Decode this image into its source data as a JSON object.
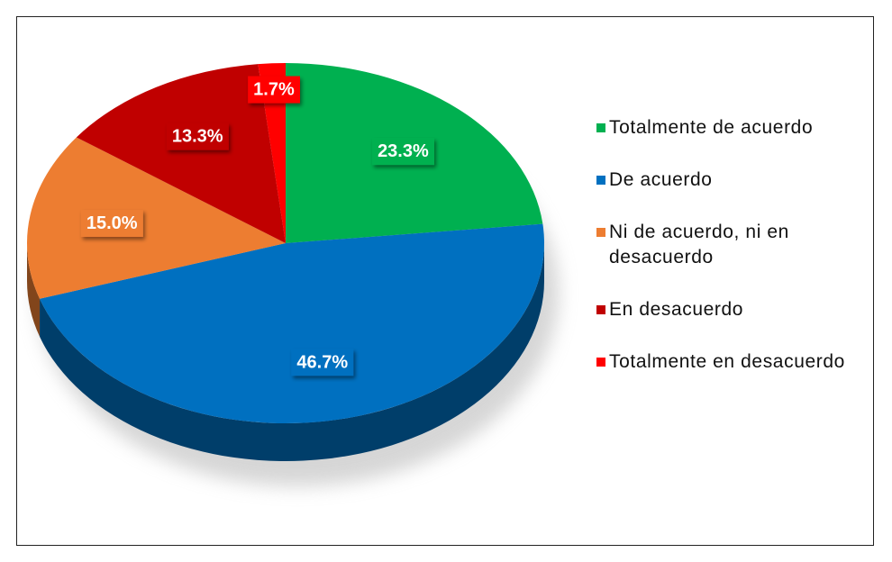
{
  "chart_data": {
    "type": "pie",
    "categories": [
      "Totalmente de acuerdo",
      "De acuerdo",
      "Ni de acuerdo, ni en desacuerdo",
      "En desacuerdo",
      "Totalmente en desacuerdo"
    ],
    "values": [
      23.3,
      46.7,
      15.0,
      13.3,
      1.7
    ],
    "value_labels": [
      "23.3%",
      "46.7%",
      "15.0%",
      "13.3%",
      "1.7%"
    ],
    "colors": [
      "#00b050",
      "#0070c0",
      "#ed7d31",
      "#c00000",
      "#ff0000"
    ],
    "legend": "right"
  }
}
